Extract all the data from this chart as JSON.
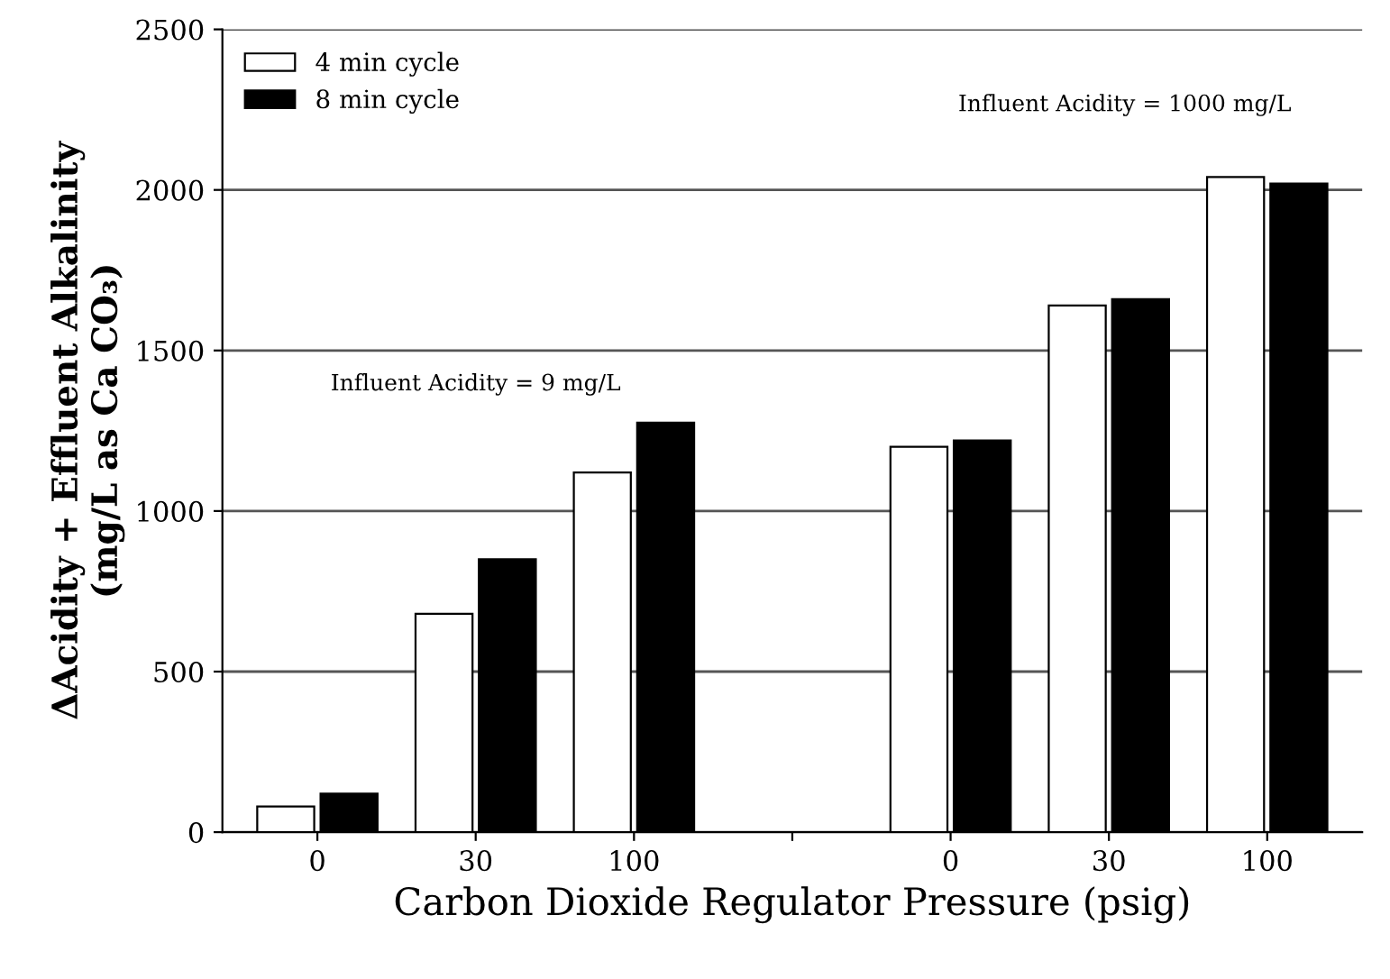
{
  "chart_data": {
    "type": "bar",
    "xlabel": "Carbon Dioxide Regulator Pressure (psig)",
    "ylabel": "ΔAcidity + Effluent Alkalinity\n(mg/L as Ca CO₃)",
    "categories": [
      "0",
      "30",
      "100",
      null,
      "0",
      "30",
      "100"
    ],
    "series": [
      {
        "name": "4 min cycle",
        "color": "#ffffff",
        "values": [
          80,
          680,
          1120,
          null,
          1200,
          1640,
          2040
        ]
      },
      {
        "name": "8 min cycle",
        "color": "#000000",
        "values": [
          120,
          850,
          1275,
          null,
          1220,
          1660,
          2020
        ]
      }
    ],
    "ylim": [
      0,
      2500
    ],
    "yticks": [
      0,
      500,
      1000,
      1500,
      2000,
      2500
    ],
    "grid": "y",
    "legend": "top left",
    "annotations": [
      "Influent Acidity = 9 mg/L",
      "Influent Acidity = 1000 mg/L"
    ]
  }
}
